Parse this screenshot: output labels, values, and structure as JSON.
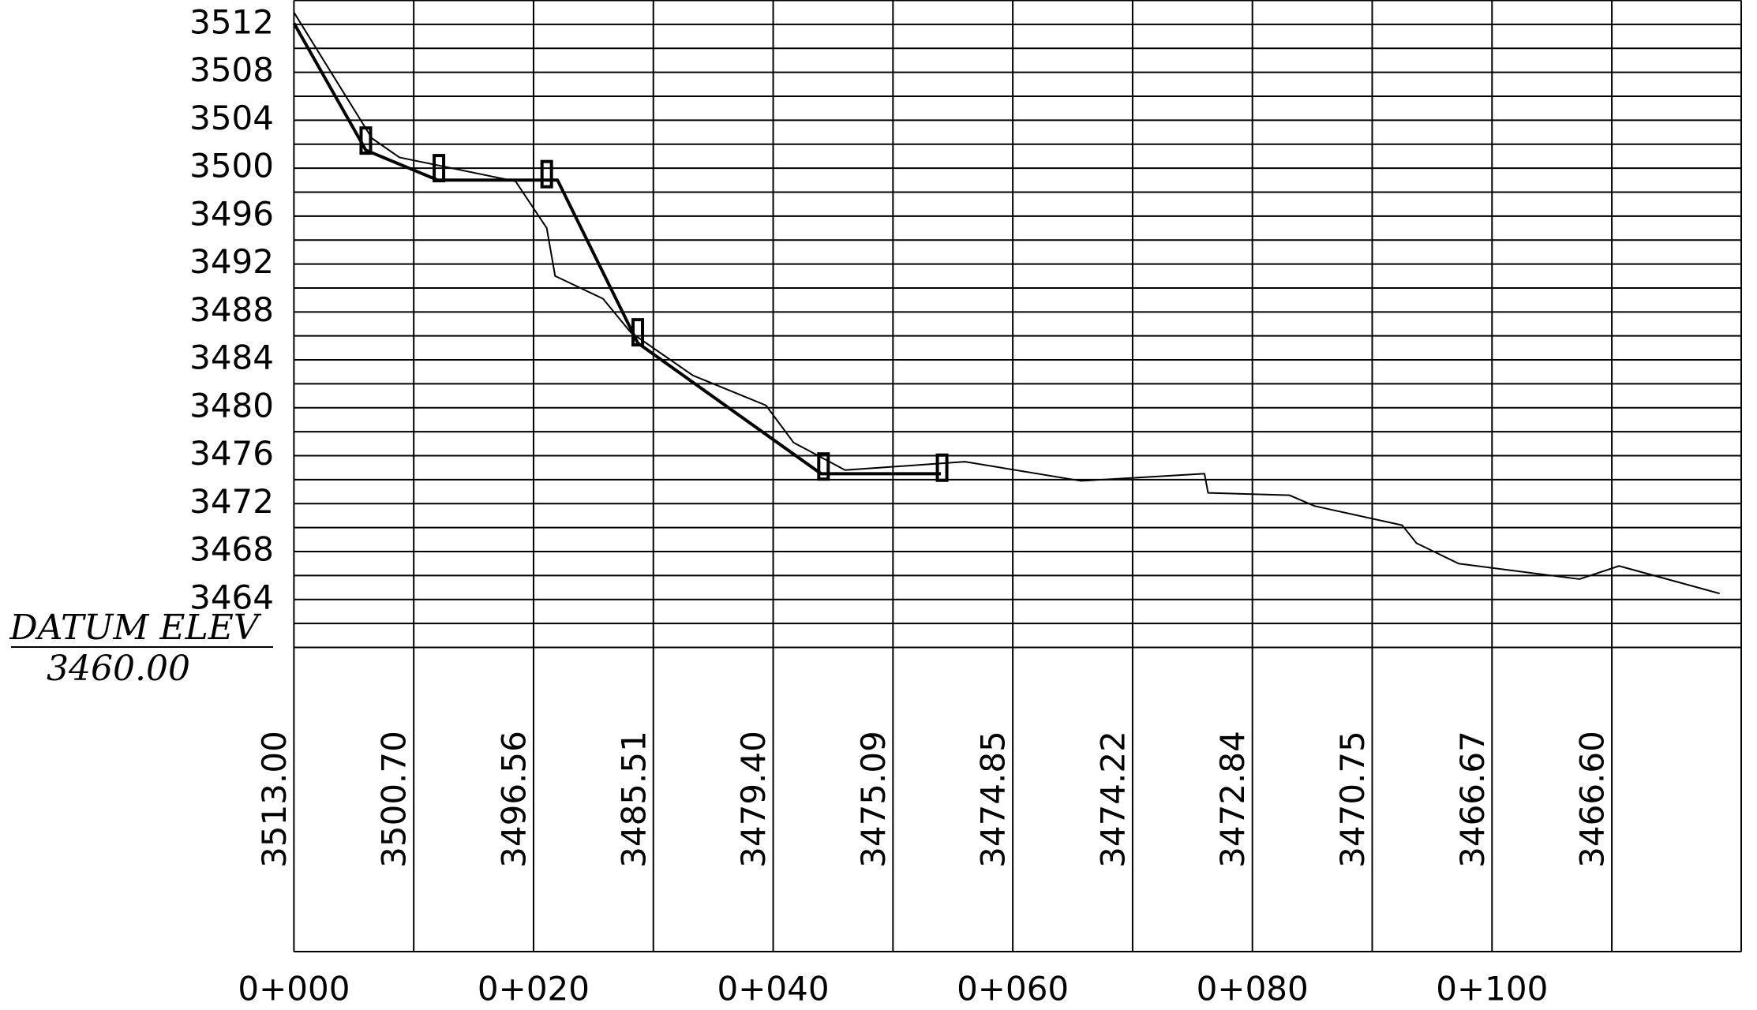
{
  "chart_data": {
    "type": "line",
    "datum_label": "DATUM ELEV",
    "datum_value": "3460.00",
    "xlim": [
      0,
      120.8
    ],
    "ylim": [
      3460,
      3514
    ],
    "xticks": [
      {
        "value": 0,
        "label": "0+000"
      },
      {
        "value": 20,
        "label": "0+020"
      },
      {
        "value": 40,
        "label": "0+040"
      },
      {
        "value": 60,
        "label": "0+060"
      },
      {
        "value": 80,
        "label": "0+080"
      },
      {
        "value": 100,
        "label": "0+100"
      }
    ],
    "xgrid": [
      0,
      10,
      20,
      30,
      40,
      50,
      60,
      70,
      80,
      90,
      100,
      110
    ],
    "yticks": [
      3464,
      3468,
      3472,
      3476,
      3480,
      3484,
      3488,
      3492,
      3496,
      3500,
      3504,
      3508,
      3512
    ],
    "minor_yticks": [
      3462,
      3466,
      3470,
      3474,
      3478,
      3482,
      3486,
      3490,
      3494,
      3498,
      3502,
      3506,
      3510
    ],
    "grid": true,
    "station_elevations": [
      "3513.00",
      "3500.70",
      "3496.56",
      "3485.51",
      "3479.40",
      "3475.09",
      "3474.85",
      "3474.22",
      "3472.84",
      "3470.75",
      "3466.67",
      "3466.60"
    ],
    "series": [
      {
        "color": "#000000",
        "weight": "thin",
        "x": [
          0,
          6.5,
          8.8,
          18.5,
          21.1,
          21.8,
          25.8,
          28.1,
          33.3,
          39.4,
          41.7,
          46.0,
          56.0,
          65.7,
          76.0,
          76.3,
          83.1,
          85.2,
          92.5,
          93.7,
          97.2,
          107.3,
          110.6,
          119.0
        ],
        "y": [
          3513.0,
          3502.5,
          3500.9,
          3498.9,
          3495.0,
          3491.0,
          3489.1,
          3486.3,
          3482.7,
          3480.2,
          3477.1,
          3474.8,
          3475.5,
          3473.9,
          3474.5,
          3472.9,
          3472.7,
          3471.8,
          3470.2,
          3468.7,
          3467.0,
          3465.7,
          3466.8,
          3464.5
        ]
      },
      {
        "color": "#000000",
        "weight": "bold",
        "x": [
          0,
          6.0,
          12.0,
          22.0,
          28.7,
          44.0,
          54.0
        ],
        "y": [
          3512.1,
          3501.5,
          3499.0,
          3499.0,
          3485.4,
          3474.5,
          3474.5
        ]
      }
    ],
    "markers_x": [
      6.0,
      12.1,
      21.1,
      28.7,
      44.2,
      54.1
    ],
    "markers_y": [
      3502.3,
      3500.0,
      3499.5,
      3486.3,
      3475.1,
      3475.0
    ]
  }
}
